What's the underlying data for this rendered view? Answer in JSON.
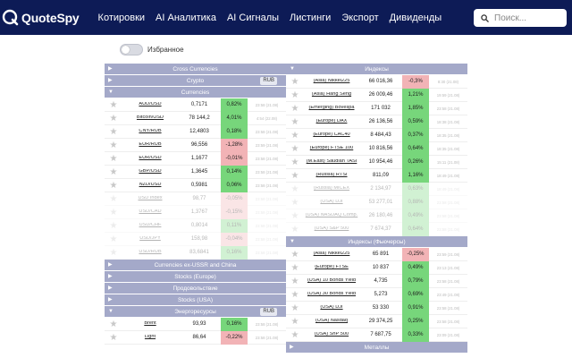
{
  "brand": {
    "name": "QuoteSpy"
  },
  "nav": {
    "items": [
      "Котировки",
      "AI Аналитика",
      "AI Сигналы",
      "Листинги",
      "Экспорт",
      "Дивиденды"
    ]
  },
  "search": {
    "placeholder": "Поиск..."
  },
  "favorites": {
    "label": "Избранное",
    "enabled": false
  },
  "colors": {
    "navbar": "#0d1b56",
    "section": "#a4a9c9",
    "positive": "#77d67b",
    "negative": "#f2b3b6"
  },
  "left": [
    {
      "kind": "header",
      "title": "Cross Currencies",
      "expanded": false
    },
    {
      "kind": "header",
      "title": "Crypto",
      "expanded": false,
      "badge": "RUB"
    },
    {
      "kind": "header",
      "title": "Currencies",
      "expanded": true
    },
    {
      "kind": "row",
      "name": "AUD/USD",
      "price": "0,7171",
      "change": "0,82%",
      "dir": "pos",
      "time": "23:58 (21.08)"
    },
    {
      "kind": "row",
      "name": "Bitcoin/USD",
      "price": "78 144,2",
      "change": "4,01%",
      "dir": "pos",
      "time": "4:54 (22.08)"
    },
    {
      "kind": "row",
      "name": "CNY/RUB",
      "price": "12,4803",
      "change": "0,18%",
      "dir": "pos",
      "time": "23:58 (21.08)"
    },
    {
      "kind": "row",
      "name": "EUR/RUB",
      "price": "96,556",
      "change": "-1,28%",
      "dir": "neg",
      "time": "23:59 (21.08)"
    },
    {
      "kind": "row",
      "name": "EUR/USD",
      "price": "1,1677",
      "change": "-0,01%",
      "dir": "neg",
      "time": "23:58 (21.08)"
    },
    {
      "kind": "row",
      "name": "GBP/USD",
      "price": "1,3645",
      "change": "0,14%",
      "dir": "pos",
      "time": "23:58 (21.08)"
    },
    {
      "kind": "row",
      "name": "NZD/USD",
      "price": "0,5981",
      "change": "0,06%",
      "dir": "pos",
      "time": "23:58 (21.08)"
    },
    {
      "kind": "row",
      "name": "USD Index",
      "price": "98,77",
      "change": "-0,05%",
      "dir": "neg",
      "time": "23:58 (21.08)",
      "faded": true
    },
    {
      "kind": "row",
      "name": "USD/CAD",
      "price": "1,3767",
      "change": "-0,15%",
      "dir": "neg",
      "time": "23:58 (21.08)",
      "faded": true
    },
    {
      "kind": "row",
      "name": "USD/CHF",
      "price": "0,8014",
      "change": "0,11%",
      "dir": "pos",
      "time": "23:58 (21.08)",
      "faded": true
    },
    {
      "kind": "row",
      "name": "USD/JPY",
      "price": "158,98",
      "change": "-0,04%",
      "dir": "neg",
      "time": "23:58 (21.08)",
      "faded": true
    },
    {
      "kind": "row",
      "name": "USD/RUB",
      "price": "83,6841",
      "change": "0,16%",
      "dir": "pos",
      "time": "23:58 (21.08)",
      "faded": true
    },
    {
      "kind": "header",
      "title": "Currencies ex-USSR and China",
      "expanded": false
    },
    {
      "kind": "header",
      "title": "Stocks (Europe)",
      "expanded": false
    },
    {
      "kind": "header",
      "title": "Продовольствие",
      "expanded": false
    },
    {
      "kind": "header",
      "title": "Stocks (USA)",
      "expanded": false
    },
    {
      "kind": "header",
      "title": "Энергоресурсы",
      "expanded": true,
      "badge": "RUB"
    },
    {
      "kind": "row",
      "name": "Brent",
      "price": "93,93",
      "change": "0,16%",
      "dir": "pos",
      "time": "23:58 (21.08)"
    },
    {
      "kind": "row",
      "name": "Light",
      "price": "86,64",
      "change": "-0,22%",
      "dir": "neg",
      "time": "23:58 (21.08)"
    }
  ],
  "right": [
    {
      "kind": "header",
      "title": "Индексы",
      "expanded": true
    },
    {
      "kind": "row",
      "name": "(Asia) Nikkei225",
      "price": "66 016,36",
      "change": "-0,3%",
      "dir": "neg",
      "time": "8:30 (21.08)"
    },
    {
      "kind": "row",
      "name": "(Asia) Hang Seng",
      "price": "26 009,46",
      "change": "1,21%",
      "dir": "pos",
      "time": "19:59 (21.08)"
    },
    {
      "kind": "row",
      "name": "(Emerging) Bovespa",
      "price": "171 032",
      "change": "1,85%",
      "dir": "pos",
      "time": "23:58 (21.08)"
    },
    {
      "kind": "row",
      "name": "(Europe) DAX",
      "price": "26 136,56",
      "change": "0,59%",
      "dir": "pos",
      "time": "18:38 (21.08)"
    },
    {
      "kind": "row",
      "name": "(Europe) CAC40",
      "price": "8 484,43",
      "change": "0,37%",
      "dir": "pos",
      "time": "18:35 (21.08)"
    },
    {
      "kind": "row",
      "name": "(Europe) FTSE 100",
      "price": "10 816,56",
      "change": "0,64%",
      "dir": "pos",
      "time": "18:35 (21.08)"
    },
    {
      "kind": "row",
      "name": "(M.East) Saudian TASI",
      "price": "10 954,46",
      "change": "0,26%",
      "dir": "pos",
      "time": "15:11 (21.08)"
    },
    {
      "kind": "row",
      "name": "(Russia) RTSI",
      "price": "811,09",
      "change": "1,16%",
      "dir": "pos",
      "time": "18:49 (21.08)"
    },
    {
      "kind": "row",
      "name": "(Russia) MICEX",
      "price": "2 134,97",
      "change": "0,63%",
      "dir": "pos",
      "time": "18:49 (21.08)",
      "faded": true
    },
    {
      "kind": "row",
      "name": "(USA) DJI",
      "price": "53 277,01",
      "change": "0,88%",
      "dir": "pos",
      "time": "23:58 (21.08)",
      "faded": true
    },
    {
      "kind": "row",
      "name": "(USA) NASDAQ Comp.",
      "price": "26 180,46",
      "change": "0,49%",
      "dir": "pos",
      "time": "23:58 (21.08)",
      "faded": true
    },
    {
      "kind": "row",
      "name": "(USA) S&P 500",
      "price": "7 674,37",
      "change": "0,64%",
      "dir": "pos",
      "time": "23:58 (21.08)",
      "faded": true
    },
    {
      "kind": "header",
      "title": "Индексы (Фьючерсы)",
      "expanded": true
    },
    {
      "kind": "row",
      "name": "(Asia) Nikkei225",
      "price": "65 891",
      "change": "-0,25%",
      "dir": "neg",
      "time": "23:59 (21.08)"
    },
    {
      "kind": "row",
      "name": "(Europe) FTSE",
      "price": "10 837",
      "change": "0,49%",
      "dir": "pos",
      "time": "23:13 (21.08)"
    },
    {
      "kind": "row",
      "name": "(USA) 10 Bonds Yield",
      "price": "4,735",
      "change": "0,79%",
      "dir": "pos",
      "time": "23:58 (21.08)"
    },
    {
      "kind": "row",
      "name": "(USA) 30 Bonds Yield",
      "price": "5,273",
      "change": "0,69%",
      "dir": "pos",
      "time": "23:49 (21.08)"
    },
    {
      "kind": "row",
      "name": "(USA) DJI",
      "price": "53 330",
      "change": "0,91%",
      "dir": "pos",
      "time": "23:58 (21.08)"
    },
    {
      "kind": "row",
      "name": "(USA) Nasdaq",
      "price": "29 374,25",
      "change": "0,25%",
      "dir": "pos",
      "time": "23:58 (21.08)"
    },
    {
      "kind": "row",
      "name": "(USA) SnP 500",
      "price": "7 687,75",
      "change": "0,33%",
      "dir": "pos",
      "time": "23:09 (21.08)"
    },
    {
      "kind": "header",
      "title": "Металлы",
      "expanded": false
    }
  ]
}
